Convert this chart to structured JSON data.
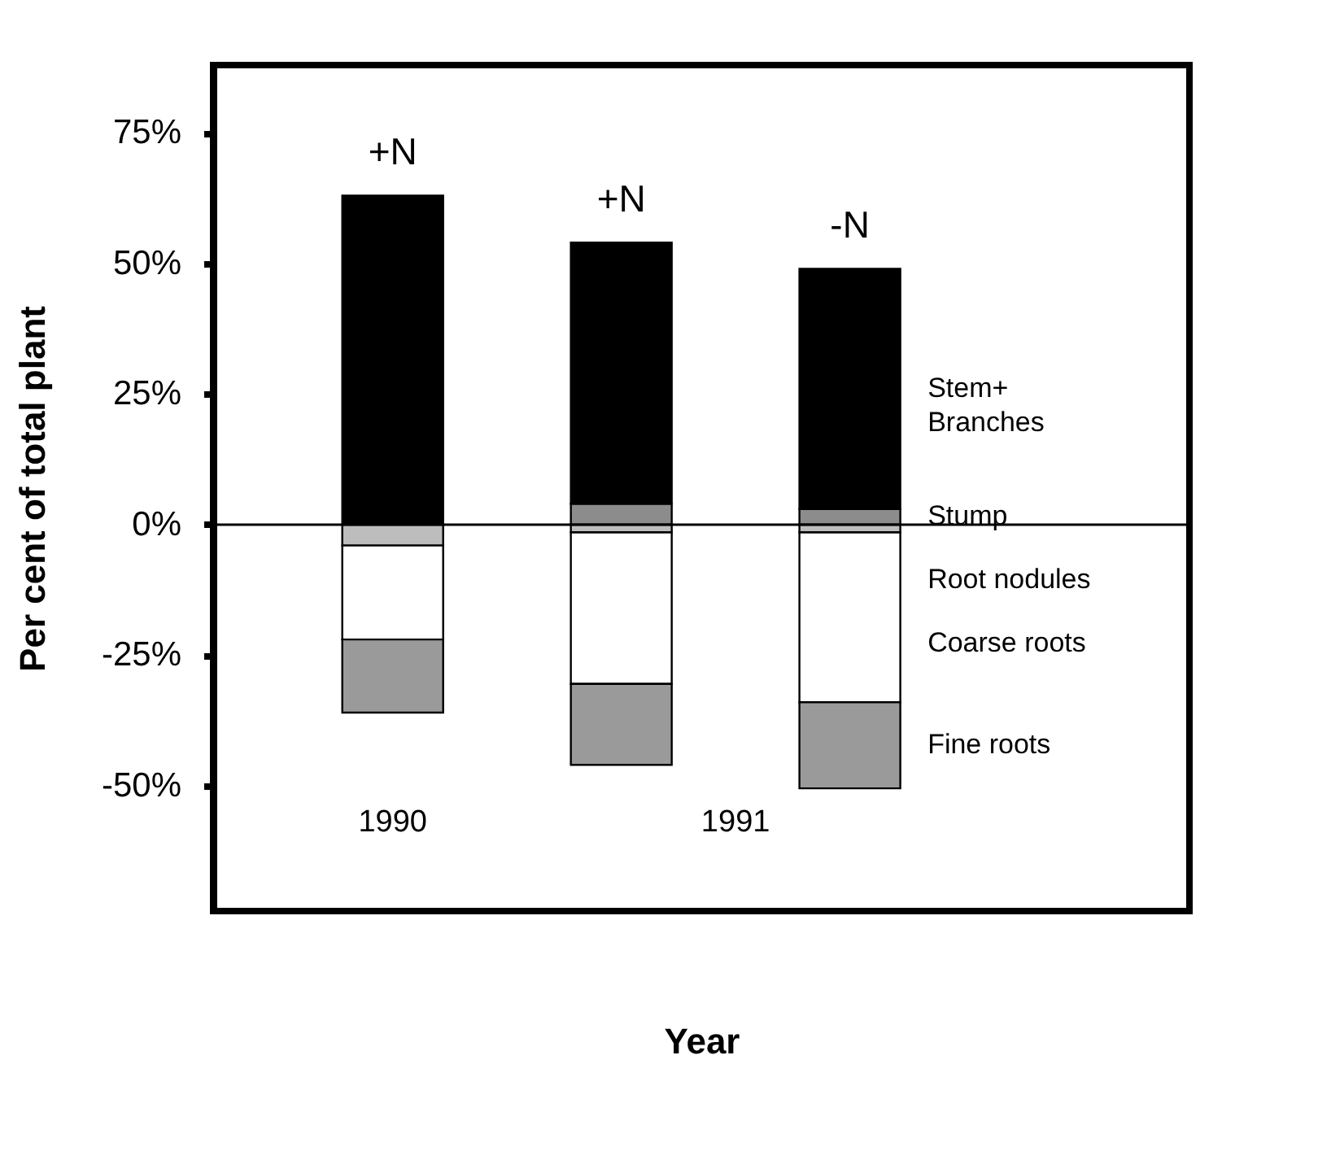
{
  "chart_data": {
    "type": "bar",
    "stacked": true,
    "xlabel": "Year",
    "ylabel": "Per cent of total plant",
    "categories": [
      "+N",
      "+N",
      "-N"
    ],
    "series": [
      {
        "name": "Stump",
        "color": "#8c8c8c",
        "values": [
          0,
          4,
          3
        ]
      },
      {
        "name": "Stem+ Branches",
        "color": "#000000",
        "values": [
          63,
          50,
          46
        ]
      },
      {
        "name": "Root nodules",
        "color": "#bdbdbd",
        "values": [
          -4,
          -1.5,
          -1.5
        ]
      },
      {
        "name": "Coarse roots",
        "color": "#ffffff",
        "values": [
          -18,
          -29,
          -32.5
        ]
      },
      {
        "name": "Fine roots",
        "color": "#9a9a9a",
        "values": [
          -14,
          -15.5,
          -16.5
        ]
      }
    ],
    "annotations": [
      "1990",
      "1991"
    ],
    "ylim": [
      -74,
      88
    ],
    "yticks": [
      {
        "value": -50,
        "label": "-50%"
      },
      {
        "value": -25,
        "label": "-25%"
      },
      {
        "value": 0,
        "label": "0%"
      },
      {
        "value": 25,
        "label": "25%"
      },
      {
        "value": 50,
        "label": "50%"
      },
      {
        "value": 75,
        "label": "75%"
      }
    ],
    "ref_lines": [
      {
        "axis": "y",
        "value": 0,
        "color": "#000000"
      }
    ],
    "grid": false,
    "legend": false
  }
}
